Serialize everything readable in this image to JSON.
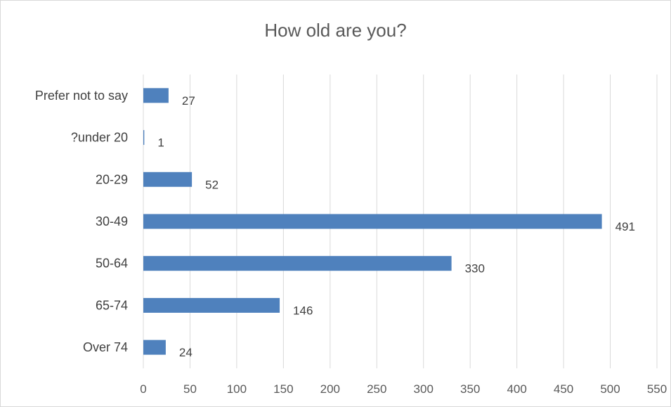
{
  "chart_data": {
    "type": "bar",
    "orientation": "horizontal",
    "title": "How old are you?",
    "xlabel": "",
    "ylabel": "",
    "categories": [
      "Prefer not to say",
      "?under 20",
      "20-29",
      "30-49",
      "50-64",
      "65-74",
      "Over 74"
    ],
    "values": [
      27,
      1,
      52,
      491,
      330,
      146,
      24
    ],
    "xlim": [
      0,
      550
    ],
    "xticks": [
      "0",
      "50",
      "100",
      "150",
      "200",
      "250",
      "300",
      "350",
      "400",
      "450",
      "500",
      "550"
    ],
    "grid": "vertical",
    "legend": "none",
    "bar_color": "#4f81bd",
    "gridline_color": "#d9d9d9"
  }
}
